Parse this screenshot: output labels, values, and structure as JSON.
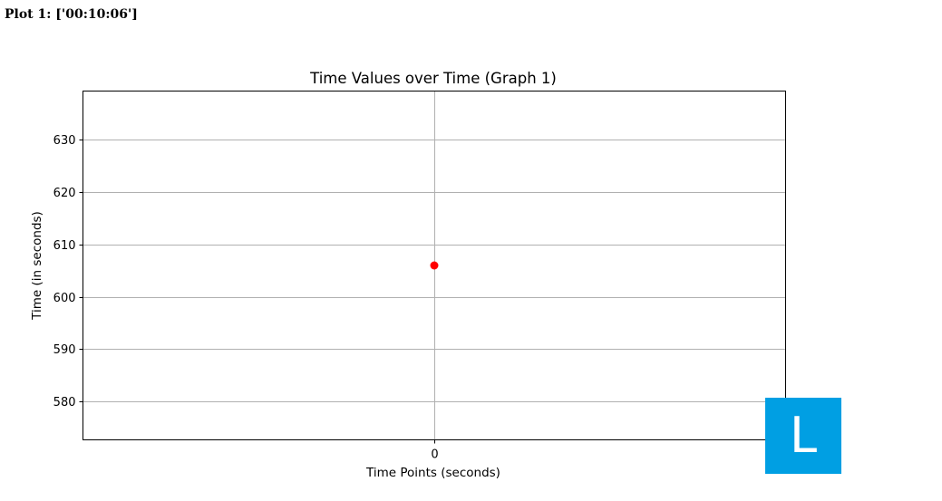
{
  "page": {
    "heading": "Plot 1: ['00:10:06']"
  },
  "badge": {
    "letter": "L",
    "color": "#009fe3"
  },
  "chart_data": {
    "type": "scatter",
    "title": "Time Values over Time (Graph 1)",
    "xlabel": "Time Points (seconds)",
    "ylabel": "Time (in seconds)",
    "x": [
      0
    ],
    "y": [
      606
    ],
    "x_ticks": [
      0
    ],
    "y_ticks": [
      580,
      590,
      600,
      610,
      620,
      630
    ],
    "xlim": [
      -0.055,
      0.055
    ],
    "ylim": [
      572.7,
      639.3
    ],
    "grid": true,
    "marker_color": "#ff0000",
    "grid_color": "#b0b0b0"
  }
}
